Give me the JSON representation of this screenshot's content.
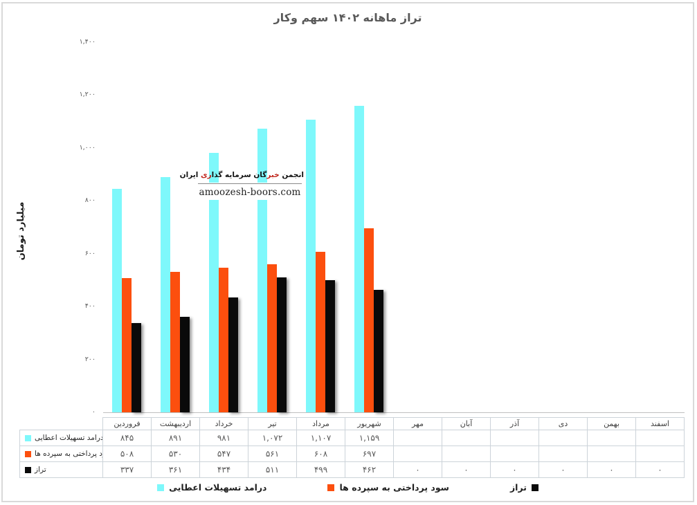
{
  "title": "تراز ماهانه ۱۴۰۲ سهم وکار",
  "y_axis": {
    "title": "میلیارد تومان",
    "tick_labels": [
      "۱,۴۰۰",
      "۱,۲۰۰",
      "۱,۰۰۰",
      "۸۰۰",
      "۶۰۰",
      "۴۰۰",
      "۲۰۰",
      "۰"
    ]
  },
  "watermark": {
    "segments": [
      {
        "text": "انجمن ",
        "color": "#111111"
      },
      {
        "text": "خبر",
        "color": "#c0261c"
      },
      {
        "text": "گان سرمایه گذا",
        "color": "#111111"
      },
      {
        "text": "ری",
        "color": "#c0261c"
      },
      {
        "text": " ایران",
        "color": "#111111"
      }
    ],
    "site": "amoozesh-boors.com"
  },
  "colors": {
    "cyan_series": "#7ef8fb",
    "orange_series": "#fc4f0e",
    "black_series": "#0a0a0a",
    "frame_border": "#d9d9d9",
    "table_border": "#ccd3d9",
    "title_text": "#595959"
  },
  "legend": [
    {
      "label": "درامد تسهیلات اعطایی",
      "color": "#7ef8fb",
      "swatch_side": "left"
    },
    {
      "label": "سود پرداختی به سپرده ها",
      "color": "#fc4f0e",
      "swatch_side": "left"
    },
    {
      "label": "تراز",
      "color": "#0a0a0a",
      "swatch_side": "right"
    }
  ],
  "table": {
    "columns": [
      "فروردین",
      "اردیبهشت",
      "خرداد",
      "تیر",
      "مرداد",
      "شهریور",
      "مهر",
      "آبان",
      "آذر",
      "دی",
      "بهمن",
      "اسفند"
    ],
    "rows": [
      {
        "label": "درامد تسهیلات اعطایی",
        "color": "#7ef8fb",
        "cells": [
          "۸۴۵",
          "۸۹۱",
          "۹۸۱",
          "۱,۰۷۲",
          "۱,۱۰۷",
          "۱,۱۵۹",
          "",
          "",
          "",
          "",
          "",
          ""
        ]
      },
      {
        "label": "سود پرداختی به سپرده ها",
        "color": "#fc4f0e",
        "cells": [
          "۵۰۸",
          "۵۳۰",
          "۵۴۷",
          "۵۶۱",
          "۶۰۸",
          "۶۹۷",
          "",
          "",
          "",
          "",
          "",
          ""
        ]
      },
      {
        "label": "تراز",
        "color": "#0a0a0a",
        "cells": [
          "۳۳۷",
          "۳۶۱",
          "۴۳۴",
          "۵۱۱",
          "۴۹۹",
          "۴۶۲",
          "۰",
          "۰",
          "۰",
          "۰",
          "۰",
          "۰"
        ]
      }
    ]
  },
  "chart_data": {
    "type": "bar",
    "title": "تراز ماهانه ۱۴۰۲ سهم وکار",
    "ylabel": "میلیارد تومان",
    "xlabel": "",
    "ylim": [
      0,
      1400
    ],
    "ytick_step": 200,
    "grid": false,
    "legend_position": "bottom",
    "categories": [
      "فروردین",
      "اردیبهشت",
      "خرداد",
      "تیر",
      "مرداد",
      "شهریور",
      "مهر",
      "آبان",
      "آذر",
      "دی",
      "بهمن",
      "اسفند"
    ],
    "series": [
      {
        "name": "درامد تسهیلات اعطایی",
        "color": "#7ef8fb",
        "values": [
          845,
          891,
          981,
          1072,
          1107,
          1159,
          null,
          null,
          null,
          null,
          null,
          null
        ]
      },
      {
        "name": "سود پرداختی به سپرده ها",
        "color": "#fc4f0e",
        "values": [
          508,
          530,
          547,
          561,
          608,
          697,
          null,
          null,
          null,
          null,
          null,
          null
        ]
      },
      {
        "name": "تراز",
        "color": "#0a0a0a",
        "shadow": true,
        "values": [
          337,
          361,
          434,
          511,
          499,
          462,
          0,
          0,
          0,
          0,
          0,
          0
        ]
      }
    ]
  }
}
